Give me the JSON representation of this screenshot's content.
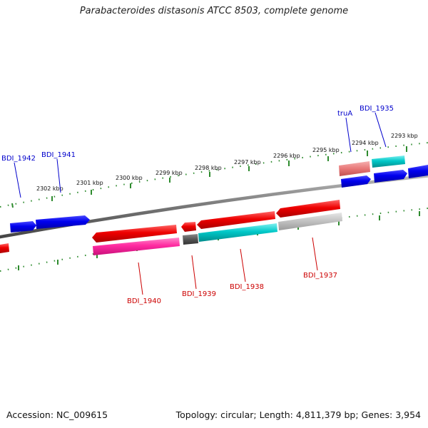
{
  "title": "Parabacteroides distasonis ATCC 8503, complete genome",
  "footer": {
    "accession": "Accession: NC_009615",
    "summary": "Topology: circular; Length: 4,811,379 bp; Genes: 3,954"
  },
  "ticks": [
    "2302 kbp",
    "2301 kbp",
    "2300 kbp",
    "2299 kbp",
    "2298 kbp",
    "2297 kbp",
    "2296 kbp",
    "2295 kbp",
    "2294 kbp",
    "2293 kbp"
  ],
  "genes": {
    "plus": [
      {
        "label": "BDI_1942",
        "color": "#0000cc"
      },
      {
        "label": "BDI_1941",
        "color": "#0000cc"
      },
      {
        "label": "truA",
        "color": "#0000cc"
      },
      {
        "label": "BDI_1935",
        "color": "#0000cc"
      }
    ],
    "minus": [
      {
        "label": "BDI_1940",
        "color": "#cc0000"
      },
      {
        "label": "BDI_1939",
        "color": "#cc0000"
      },
      {
        "label": "BDI_1938",
        "color": "#cc0000"
      },
      {
        "label": "BDI_1937",
        "color": "#cc0000"
      }
    ]
  },
  "colors": {
    "backbone": "#777777",
    "tick": "#2e8b2e",
    "forward_gene": "#0000ee",
    "reverse_gene": "#ee0000",
    "feature_cyan": "#00c8c8",
    "feature_magenta": "#ff2aa0",
    "feature_gray": "#555555",
    "feature_light_gray": "#c0c0c0",
    "feature_pink": "#e87878"
  }
}
